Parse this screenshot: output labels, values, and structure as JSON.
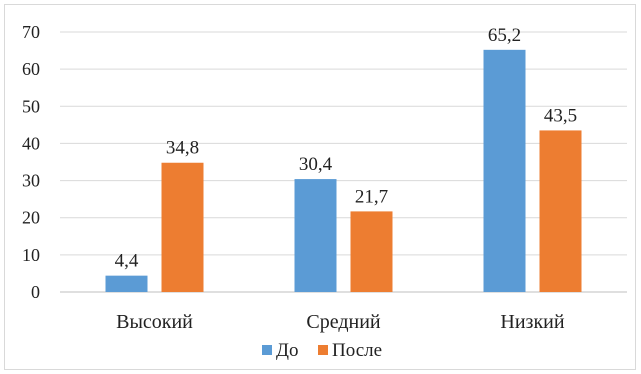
{
  "chart_data": {
    "type": "bar",
    "categories": [
      "Высокий",
      "Средний",
      "Низкий"
    ],
    "series": [
      {
        "name": "До",
        "values": [
          4.4,
          30.4,
          65.2
        ],
        "labels": [
          "4,4",
          "30,4",
          "65,2"
        ],
        "color": "#5b9bd5"
      },
      {
        "name": "После",
        "values": [
          34.8,
          21.7,
          43.5
        ],
        "labels": [
          "34,8",
          "21,7",
          "43,5"
        ],
        "color": "#ed7d31"
      }
    ],
    "yticks": [
      "0",
      "10",
      "20",
      "30",
      "40",
      "50",
      "60",
      "70"
    ],
    "ylim": [
      0,
      70
    ],
    "grid": true,
    "legend_position": "bottom",
    "title": "",
    "xlabel": "",
    "ylabel": ""
  }
}
